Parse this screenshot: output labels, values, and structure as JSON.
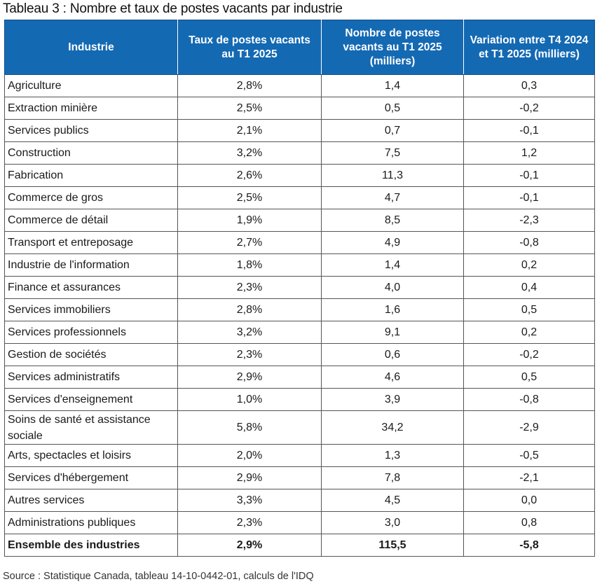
{
  "title": "Tableau 3 : Nombre et taux de postes vacants par industrie",
  "headers": {
    "industry": "Industrie",
    "rate": "Taux de postes vacants au T1 2025",
    "count": "Nombre de postes vacants au T1 2025 (milliers)",
    "variation": "Variation entre T4 2024 et T1 2025 (milliers)"
  },
  "rows": [
    {
      "industry": "Agriculture",
      "rate": "2,8%",
      "count": "1,4",
      "variation": "0,3"
    },
    {
      "industry": "Extraction minière",
      "rate": "2,5%",
      "count": "0,5",
      "variation": "-0,2"
    },
    {
      "industry": "Services publics",
      "rate": "2,1%",
      "count": "0,7",
      "variation": "-0,1"
    },
    {
      "industry": "Construction",
      "rate": "3,2%",
      "count": "7,5",
      "variation": "1,2"
    },
    {
      "industry": "Fabrication",
      "rate": "2,6%",
      "count": "11,3",
      "variation": "-0,1"
    },
    {
      "industry": "Commerce de gros",
      "rate": "2,5%",
      "count": "4,7",
      "variation": "-0,1"
    },
    {
      "industry": "Commerce de détail",
      "rate": "1,9%",
      "count": "8,5",
      "variation": "-2,3"
    },
    {
      "industry": "Transport et entreposage",
      "rate": "2,7%",
      "count": "4,9",
      "variation": "-0,8"
    },
    {
      "industry": "Industrie de l'information",
      "rate": "1,8%",
      "count": "1,4",
      "variation": "0,2"
    },
    {
      "industry": "Finance et assurances",
      "rate": "2,3%",
      "count": "4,0",
      "variation": "0,4"
    },
    {
      "industry": "Services immobiliers",
      "rate": "2,8%",
      "count": "1,6",
      "variation": "0,5"
    },
    {
      "industry": "Services professionnels",
      "rate": "3,2%",
      "count": "9,1",
      "variation": "0,2"
    },
    {
      "industry": "Gestion de sociétés",
      "rate": "2,3%",
      "count": "0,6",
      "variation": "-0,2"
    },
    {
      "industry": "Services administratifs",
      "rate": "2,9%",
      "count": "4,6",
      "variation": "0,5"
    },
    {
      "industry": "Services d'enseignement",
      "rate": "1,0%",
      "count": "3,9",
      "variation": "-0,8"
    },
    {
      "industry": "Soins de santé et assistance sociale",
      "rate": "5,8%",
      "count": "34,2",
      "variation": "-2,9"
    },
    {
      "industry": "Arts, spectacles et loisirs",
      "rate": "2,0%",
      "count": "1,3",
      "variation": "-0,5"
    },
    {
      "industry": "Services d'hébergement",
      "rate": "2,9%",
      "count": "7,8",
      "variation": "-2,1"
    },
    {
      "industry": "Autres services",
      "rate": "3,3%",
      "count": "4,5",
      "variation": "0,0"
    },
    {
      "industry": "Administrations publiques",
      "rate": "2,3%",
      "count": "3,0",
      "variation": "0,8"
    }
  ],
  "total": {
    "industry": "Ensemble des industries",
    "rate": "2,9%",
    "count": "115,5",
    "variation": "-5,8"
  },
  "source": "Source : Statistique Canada, tableau 14-10-0442-01, calculs de l'IDQ",
  "colors": {
    "header_bg": "#1469b3",
    "header_text": "#ffffff",
    "border": "#555555"
  }
}
